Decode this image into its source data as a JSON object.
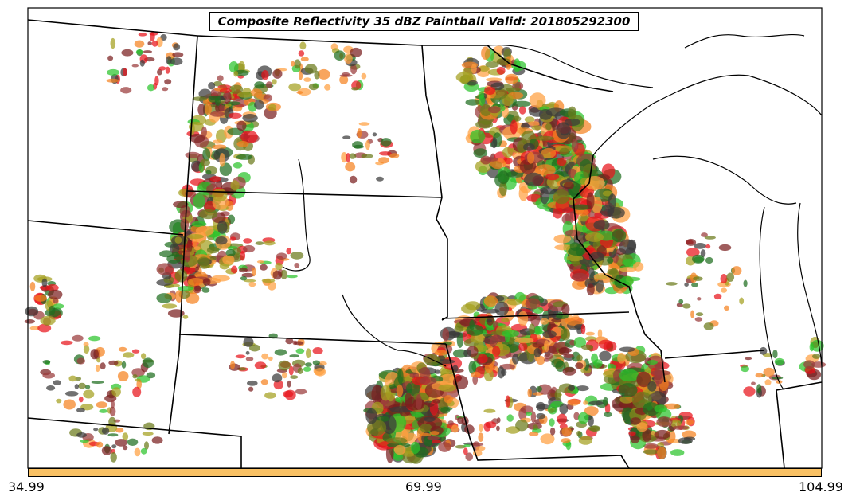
{
  "title": "Composite Reflectivity 35 dBZ Paintball Valid: 201805292300",
  "colorbar": {
    "color": "#f9c164",
    "ticks": [
      "34.99",
      "69.99",
      "104.99"
    ]
  },
  "colors": {
    "member_palette": [
      "#e8141a",
      "#f58220",
      "#7a1e1e",
      "#2bc42b",
      "#6b7a1a",
      "#1f6e1f",
      "#3a3a3a",
      "#a3a01e",
      "#ffa040",
      "#9a3a3a"
    ],
    "boundary": "#000000"
  }
}
